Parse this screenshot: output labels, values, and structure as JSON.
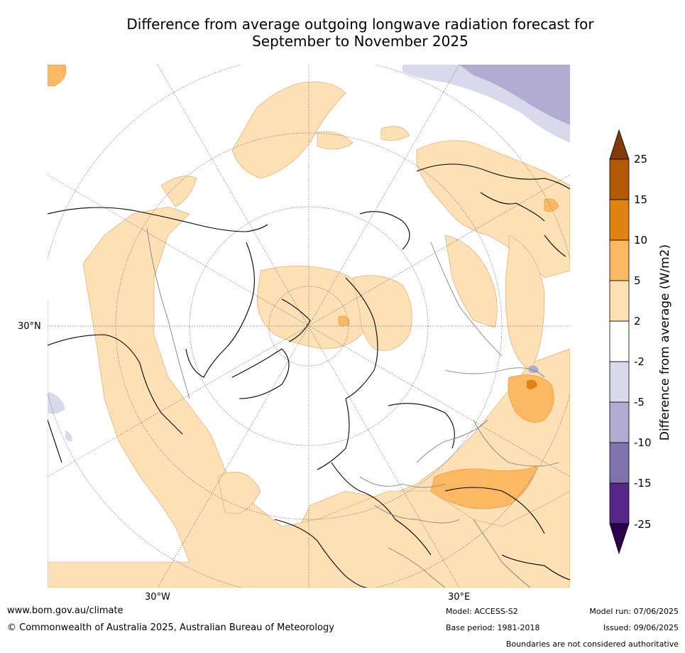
{
  "title_line1": "Difference from average outgoing longwave radiation forecast for",
  "title_line2": "September to November 2025",
  "axis_labels": {
    "lat_30n": "30°N",
    "lon_30w": "30°W",
    "lon_30e": "30°E"
  },
  "colorbar": {
    "label": "Difference from average (W/m2)",
    "ticks": [
      "25",
      "15",
      "10",
      "5",
      "2",
      "-2",
      "-5",
      "-10",
      "-15",
      "-25"
    ],
    "colors": {
      "over": "#7f3b08",
      "b15_25": "#b35806",
      "b10_15": "#e08214",
      "b5_10": "#fdb863",
      "b2_5": "#fee0b6",
      "neutral": "#ffffff",
      "bm2_m5": "#d8daeb",
      "bm5_m10": "#b2abd2",
      "bm10_m15": "#8073ac",
      "bm15_m25": "#542788",
      "under": "#2d004b"
    }
  },
  "footer": {
    "website": "www.bom.gov.au/climate",
    "copyright": "© Commonwealth of Australia 2025, Australian Bureau of Meteorology",
    "model": "Model: ACCESS-S2",
    "base_period": "Base period: 1981-2018",
    "model_run": "Model run: 07/06/2025",
    "issued": "Issued: 09/06/2025",
    "disclaimer": "Boundaries are not considered authoritative"
  }
}
